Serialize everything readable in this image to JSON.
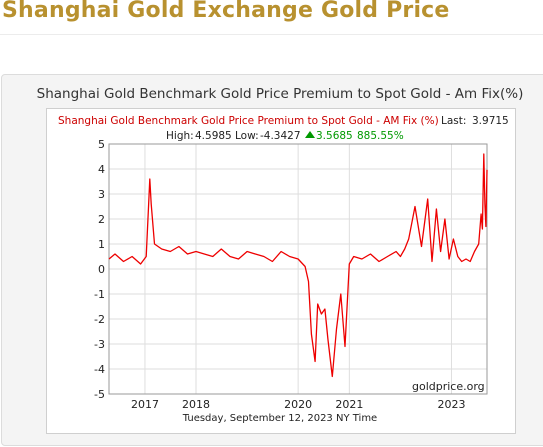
{
  "page": {
    "title": "Shanghai Gold Exchange Gold Price"
  },
  "chart_data": {
    "type": "line",
    "outer_title": "Shanghai Gold Benchmark Gold Price Premium to Spot Gold - Am Fix(%)",
    "title": "Shanghai Gold Benchmark Gold Price Premium to Spot Gold - AM Fix (%)",
    "last_label": "Last:",
    "last_value": "3.9715",
    "stats": {
      "high_label": "High:",
      "high_value": "4.5985",
      "low_label": "Low:",
      "low_value": "-4.3427",
      "change_value": "3.5685",
      "change_percent": "885.55%"
    },
    "watermark": "goldprice.org",
    "footer": "Tuesday, September 12, 2023 NY Time",
    "x_ticks": [
      "2017",
      "2018",
      "2020",
      "2021",
      "2023"
    ],
    "y_ticks": [
      5,
      4,
      3,
      2,
      1,
      0,
      -1,
      -2,
      -3,
      -4,
      -5
    ],
    "ylim": [
      -5,
      5
    ],
    "xlim": [
      "2016-04-19",
      "2023-09-12"
    ],
    "grid": true,
    "line_color": "#ee0000",
    "title_color": "#cc0000",
    "change_color": "#009900",
    "series": [
      {
        "dates": [
          "2016-04-19",
          "2016-06-01",
          "2016-08-01",
          "2016-10-01",
          "2016-12-01",
          "2017-01-10",
          "2017-01-25",
          "2017-02-05",
          "2017-02-15",
          "2017-03-10",
          "2017-05-01",
          "2017-07-01",
          "2017-09-01",
          "2017-11-01",
          "2018-01-01",
          "2018-03-01",
          "2018-05-01",
          "2018-07-01",
          "2018-09-01",
          "2018-11-01",
          "2019-01-01",
          "2019-03-01",
          "2019-05-01",
          "2019-07-01",
          "2019-09-01",
          "2019-11-01",
          "2020-01-01",
          "2020-02-20",
          "2020-03-15",
          "2020-04-05",
          "2020-05-01",
          "2020-05-20",
          "2020-06-15",
          "2020-07-10",
          "2020-08-01",
          "2020-09-01",
          "2020-10-01",
          "2020-11-01",
          "2020-12-01",
          "2021-01-01",
          "2021-02-01",
          "2021-04-01",
          "2021-06-01",
          "2021-08-01",
          "2021-10-01",
          "2021-12-01",
          "2022-01-01",
          "2022-02-01",
          "2022-03-01",
          "2022-04-15",
          "2022-06-01",
          "2022-07-15",
          "2022-08-15",
          "2022-09-15",
          "2022-10-15",
          "2022-11-15",
          "2022-12-15",
          "2023-01-15",
          "2023-02-15",
          "2023-03-15",
          "2023-04-15",
          "2023-05-15",
          "2023-06-15",
          "2023-07-15",
          "2023-08-01",
          "2023-08-10",
          "2023-08-20",
          "2023-08-28",
          "2023-09-04",
          "2023-09-12"
        ],
        "values": [
          0.4,
          0.6,
          0.3,
          0.5,
          0.2,
          0.5,
          2.3,
          3.6,
          2.6,
          1.0,
          0.8,
          0.7,
          0.9,
          0.6,
          0.7,
          0.6,
          0.5,
          0.8,
          0.5,
          0.4,
          0.7,
          0.6,
          0.5,
          0.3,
          0.7,
          0.5,
          0.4,
          0.1,
          -0.5,
          -2.6,
          -3.7,
          -1.4,
          -1.8,
          -1.6,
          -2.8,
          -4.3,
          -2.4,
          -1.0,
          -3.1,
          0.2,
          0.5,
          0.4,
          0.6,
          0.3,
          0.5,
          0.7,
          0.5,
          0.8,
          1.2,
          2.5,
          0.9,
          2.8,
          0.3,
          2.4,
          0.7,
          2.0,
          0.4,
          1.2,
          0.5,
          0.3,
          0.4,
          0.3,
          0.7,
          1.0,
          2.2,
          1.6,
          4.6,
          2.6,
          1.7,
          3.97
        ]
      }
    ]
  }
}
